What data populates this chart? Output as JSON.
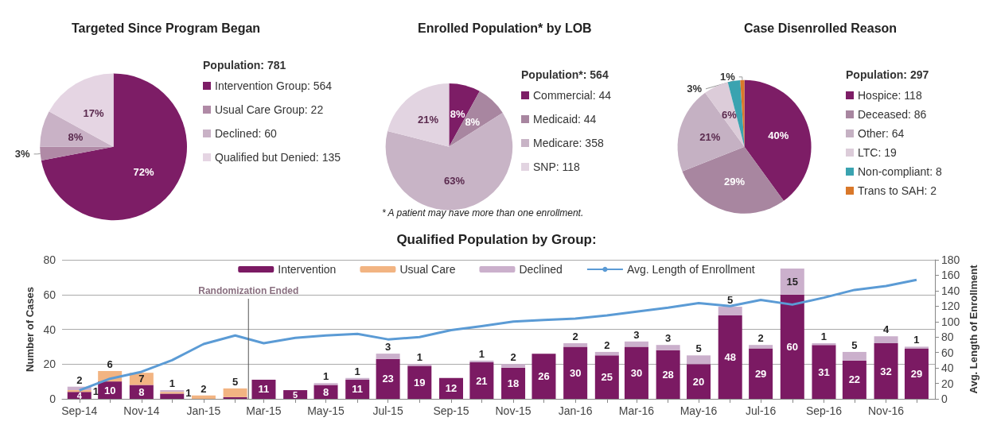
{
  "chart_data": [
    {
      "type": "pie",
      "title": "Targeted Since Program Began",
      "legend_title": "Population: 781",
      "legend": "right",
      "categories": [
        "Intervention Group: 564",
        "Usual Care Group: 22",
        "Declined: 60",
        "Qualified but Denied: 135"
      ],
      "values": [
        72,
        3,
        8,
        17
      ],
      "value_labels": [
        "72%",
        "3%",
        "8%",
        "17%"
      ],
      "colors": [
        "#7d1d66",
        "#b08aa6",
        "#c9b2c6",
        "#e5d5e3"
      ]
    },
    {
      "type": "pie",
      "title": "Enrolled Population* by LOB",
      "legend_title": "Population*: 564",
      "legend": "right",
      "categories": [
        "Commercial: 44",
        "Medicaid: 44",
        "Medicare: 358",
        "SNP: 118"
      ],
      "values": [
        8,
        8,
        63,
        21
      ],
      "value_labels": [
        "8%",
        "8%",
        "63%",
        "21%"
      ],
      "colors": [
        "#7d1d66",
        "#a886a0",
        "#c8b4c6",
        "#e2d4e1"
      ],
      "annotations": [
        "* A patient may have more than one enrollment."
      ]
    },
    {
      "type": "pie",
      "title": "Case Disenrolled Reason",
      "legend_title": "Population: 297",
      "legend": "right",
      "categories": [
        "Hospice: 118",
        "Deceased: 86",
        "Other: 64",
        "LTC: 19",
        "Non-compliant: 8",
        "Trans to SAH: 2"
      ],
      "values": [
        40,
        29,
        21,
        6,
        3,
        1
      ],
      "value_labels": [
        "40%",
        "29%",
        "21%",
        "6%",
        "3%",
        "1%"
      ],
      "colors": [
        "#7d1d66",
        "#a886a0",
        "#c5b1c3",
        "#dcccd9",
        "#3aa3b0",
        "#d9782a"
      ]
    },
    {
      "type": "bar",
      "title": "Qualified Population by Group:",
      "ylabel": "Number of Cases",
      "y2label": "Avg. Length of Enrollment",
      "stacked": true,
      "grid": "y",
      "legend": "top",
      "marker": "none",
      "xlim": [
        "2014-08-15",
        "2016-12-19"
      ],
      "x": [
        "2014-09",
        "2014-10",
        "2014-11",
        "2014-12",
        "2015-01",
        "2015-02",
        "2015-03",
        "2015-04",
        "2015-05",
        "2015-06",
        "2015-07",
        "2015-08",
        "2015-09",
        "2015-10",
        "2015-11",
        "2015-12",
        "2016-01",
        "2016-02",
        "2016-03",
        "2016-04",
        "2016-05",
        "2016-06",
        "2016-07",
        "2016-08",
        "2016-09",
        "2016-10",
        "2016-11",
        "2016-12"
      ],
      "xticks": [
        {
          "value": "2014-09",
          "label": "Sep-14"
        },
        {
          "value": "2014-11",
          "label": "Nov-14"
        },
        {
          "value": "2015-01",
          "label": "Jan-15"
        },
        {
          "value": "2015-03",
          "label": "Mar-15"
        },
        {
          "value": "2015-05",
          "label": "May-15"
        },
        {
          "value": "2015-07",
          "label": "Jul-15"
        },
        {
          "value": "2015-09",
          "label": "Sep-15"
        },
        {
          "value": "2015-11",
          "label": "Nov-15"
        },
        {
          "value": "2016-01",
          "label": "Jan-16"
        },
        {
          "value": "2016-03",
          "label": "Mar-16"
        },
        {
          "value": "2016-05",
          "label": "May-16"
        },
        {
          "value": "2016-07",
          "label": "Jul-16"
        },
        {
          "value": "2016-09",
          "label": "Sep-16"
        },
        {
          "value": "2016-11",
          "label": "Nov-16"
        }
      ],
      "ylim": [
        0,
        80
      ],
      "yticks": [
        0,
        20,
        40,
        60,
        80
      ],
      "y2lim": [
        0,
        180
      ],
      "y2ticks": [
        0,
        20,
        40,
        60,
        80,
        100,
        120,
        140,
        160,
        180
      ],
      "ref_lines": [
        {
          "axis": "x",
          "value": "2015-02-14",
          "label": "Randomization Ended",
          "color": "#555555"
        }
      ],
      "series": [
        {
          "name": "Intervention",
          "color": "#7b1a63",
          "values": [
            4,
            10,
            8,
            3,
            null,
            1,
            11,
            5,
            8,
            11,
            23,
            19,
            12,
            21,
            18,
            26,
            30,
            25,
            30,
            28,
            20,
            48,
            29,
            60,
            31,
            22,
            32,
            29
          ],
          "value_labels": [
            "4",
            "10",
            "8",
            null,
            null,
            null,
            "11",
            "5",
            "8",
            "11",
            "23",
            "19",
            "12",
            "21",
            "18",
            "26",
            "30",
            "25",
            "30",
            "28",
            "20",
            "48",
            "29",
            "60",
            "31",
            "22",
            "32",
            "29"
          ]
        },
        {
          "name": "Usual Care",
          "color": "#f2b482",
          "values": [
            1,
            6,
            7,
            1,
            2,
            5,
            null,
            null,
            null,
            null,
            null,
            null,
            null,
            null,
            null,
            null,
            null,
            null,
            null,
            null,
            null,
            null,
            null,
            null,
            null,
            null,
            null,
            null
          ],
          "value_labels": [
            "1",
            "6",
            "7",
            "1",
            "2",
            "5",
            null,
            null,
            null,
            null,
            null,
            null,
            null,
            null,
            null,
            null,
            null,
            null,
            null,
            null,
            null,
            null,
            null,
            null,
            null,
            null,
            null,
            null
          ]
        },
        {
          "name": "Declined",
          "color": "#cbb0cc",
          "values": [
            2,
            null,
            null,
            1,
            null,
            null,
            null,
            null,
            1,
            1,
            3,
            1,
            null,
            1,
            2,
            null,
            2,
            2,
            3,
            3,
            5,
            5,
            2,
            15,
            1,
            5,
            4,
            1
          ],
          "value_labels": [
            "2",
            null,
            null,
            "1",
            null,
            null,
            null,
            null,
            "1",
            "1",
            "3",
            "1",
            null,
            "1",
            "2",
            null,
            "2",
            "2",
            "3",
            "3",
            "5",
            "5",
            "2",
            "15",
            "1",
            "5",
            "4",
            "1"
          ]
        },
        {
          "name": "Avg. Length of Enrollment",
          "type": "line",
          "axis": "y2",
          "color": "#5b9bd5",
          "values": [
            11,
            26,
            35,
            50,
            71,
            82,
            72,
            79,
            82,
            84,
            77,
            80,
            89,
            94,
            100,
            102,
            104,
            108,
            113,
            118,
            124,
            120,
            128,
            122,
            131,
            141,
            146,
            154
          ]
        }
      ]
    }
  ]
}
